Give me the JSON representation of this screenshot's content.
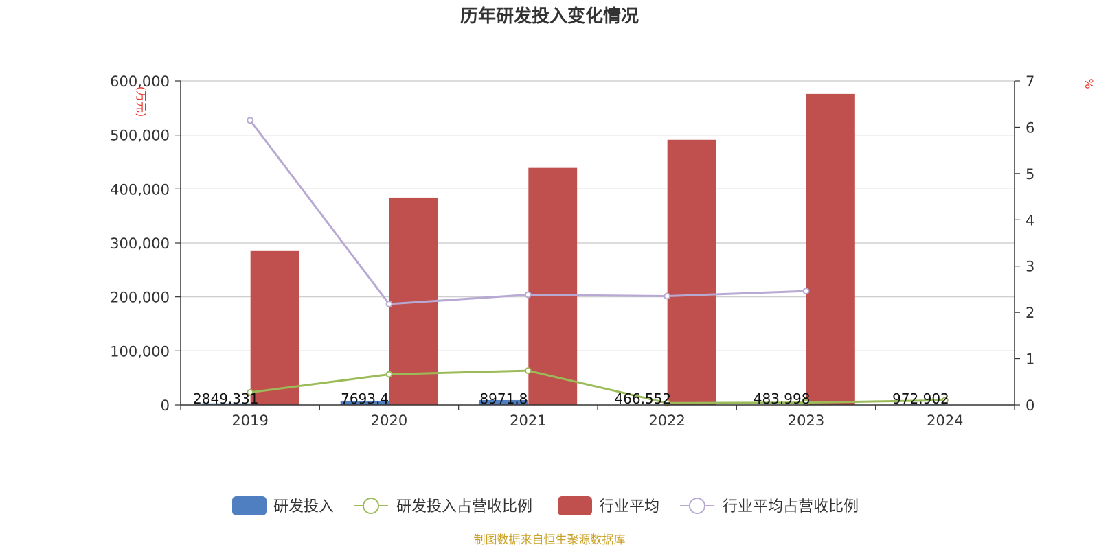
{
  "colors": {
    "rd_invest": "#4f7fc0",
    "rd_ratio": "#9bbb59",
    "industry_avg": "#c0504d",
    "industry_ratio": "#b7a9d3",
    "source": "#c9a227",
    "unit": "#e8332a"
  },
  "chart_data": {
    "type": "bar",
    "title": "历年研发投入变化情况",
    "categories": [
      "2019",
      "2020",
      "2021",
      "2022",
      "2023",
      "2024"
    ],
    "y_left": {
      "unit": "(万元)",
      "ylim": [
        0,
        600000
      ],
      "ticks": [
        "0",
        "100,000",
        "200,000",
        "300,000",
        "400,000",
        "500,000",
        "600,000"
      ]
    },
    "y_right": {
      "unit": "%",
      "ylim": [
        0,
        7
      ],
      "ticks": [
        "0",
        "1",
        "2",
        "3",
        "4",
        "5",
        "6",
        "7"
      ]
    },
    "series": [
      {
        "name": "研发投入",
        "kind": "bar",
        "axis": "left",
        "values": [
          2849.331,
          7693.4,
          8971.8,
          466.552,
          483.998,
          972.902
        ],
        "labels": [
          "2849.331",
          "7693.4",
          "8971.8",
          "466.552",
          "483.998",
          "972.902"
        ]
      },
      {
        "name": "研发投入占营收比例",
        "kind": "line",
        "axis": "right",
        "values": [
          0.27,
          0.66,
          0.74,
          0.04,
          0.05,
          0.1
        ]
      },
      {
        "name": "行业平均",
        "kind": "bar",
        "axis": "left",
        "values": [
          285000,
          384000,
          439000,
          491000,
          576000,
          null
        ]
      },
      {
        "name": "行业平均占营收比例",
        "kind": "line",
        "axis": "right",
        "values": [
          6.15,
          2.18,
          2.38,
          2.35,
          2.46,
          null
        ]
      }
    ],
    "legend": [
      "研发投入",
      "研发投入占营收比例",
      "行业平均",
      "行业平均占营收比例"
    ],
    "legend_position": "bottom",
    "grid": true
  },
  "source": "制图数据来自恒生聚源数据库"
}
